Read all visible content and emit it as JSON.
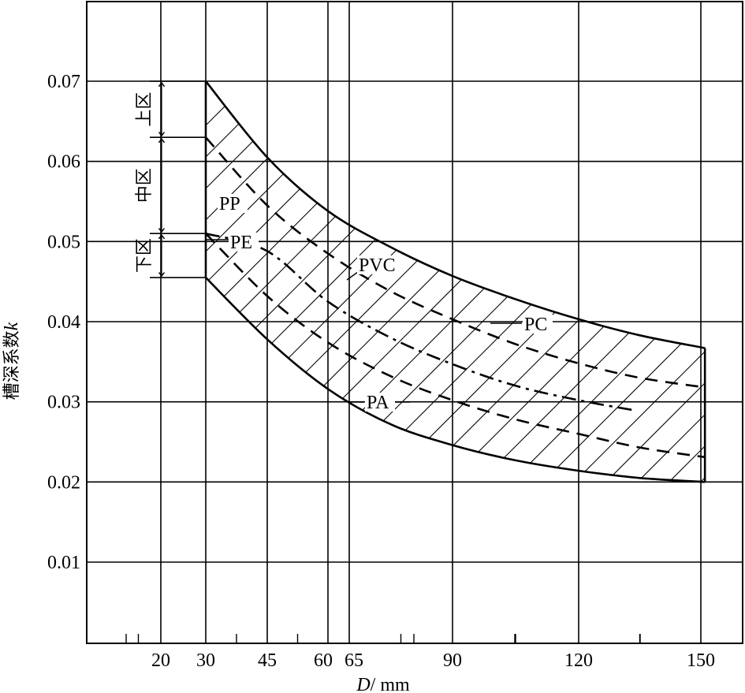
{
  "chart_data": {
    "type": "line",
    "xlabel": "D/mm",
    "xlabel_italic": "D",
    "xlabel_unit": "/ mm",
    "ylabel": "槽深系数k",
    "ylabel_text": "槽深系数",
    "ylabel_italic": "k",
    "x_ticks": [
      {
        "value": 20,
        "label": "20"
      },
      {
        "value": 30,
        "label": "30"
      },
      {
        "value": 45,
        "label": "45"
      },
      {
        "value": 60,
        "label": "60"
      },
      {
        "value": 65,
        "label": "65"
      },
      {
        "value": 90,
        "label": "90"
      },
      {
        "value": 120,
        "label": "120"
      },
      {
        "value": 150,
        "label": "150"
      }
    ],
    "y_ticks": [
      {
        "value": 0.01,
        "label": "0.01"
      },
      {
        "value": 0.02,
        "label": "0.02"
      },
      {
        "value": 0.03,
        "label": "0.03"
      },
      {
        "value": 0.04,
        "label": "0.04"
      },
      {
        "value": 0.05,
        "label": "0.05"
      },
      {
        "value": 0.06,
        "label": "0.06"
      },
      {
        "value": 0.07,
        "label": "0.07"
      }
    ],
    "grid": true,
    "series": [
      {
        "name": "PP",
        "style": "solid",
        "role": "upper boundary",
        "x": [
          30,
          45,
          60,
          75,
          90,
          105,
          120,
          135,
          151
        ],
        "y": [
          0.07,
          0.0605,
          0.0538,
          0.0493,
          0.0457,
          0.0428,
          0.0403,
          0.0383,
          0.0367
        ]
      },
      {
        "name": "PVC",
        "style": "dashed",
        "x": [
          30,
          45,
          60,
          75,
          90,
          105,
          120,
          135,
          151
        ],
        "y": [
          0.063,
          0.0545,
          0.0485,
          0.0438,
          0.0403,
          0.0372,
          0.0348,
          0.033,
          0.0318
        ]
      },
      {
        "name": "PC",
        "style": "dash-dot",
        "x": [
          30,
          45,
          60,
          75,
          90,
          105,
          120,
          133
        ],
        "y": [
          0.051,
          0.0488,
          0.0425,
          0.038,
          0.0347,
          0.032,
          0.0302,
          0.029
        ]
      },
      {
        "name": "PE",
        "style": "dashed",
        "x": [
          30,
          45,
          60,
          75,
          90,
          105,
          120,
          135,
          151
        ],
        "y": [
          0.051,
          0.0432,
          0.0374,
          0.0332,
          0.0302,
          0.0278,
          0.026,
          0.0243,
          0.0231
        ]
      },
      {
        "name": "PA",
        "style": "solid",
        "role": "lower boundary",
        "x": [
          30,
          45,
          60,
          75,
          90,
          105,
          120,
          135,
          151
        ],
        "y": [
          0.0455,
          0.0378,
          0.0316,
          0.0272,
          0.0246,
          0.0227,
          0.0214,
          0.0205,
          0.02
        ]
      }
    ],
    "zones": [
      {
        "name": "上区",
        "y_range": [
          0.063,
          0.07
        ]
      },
      {
        "name": "中区",
        "y_range": [
          0.051,
          0.063
        ]
      },
      {
        "name": "下区",
        "y_range": [
          0.0455,
          0.051
        ]
      }
    ],
    "labels": [
      "PP",
      "PE",
      "PVC",
      "PC",
      "PA"
    ]
  }
}
